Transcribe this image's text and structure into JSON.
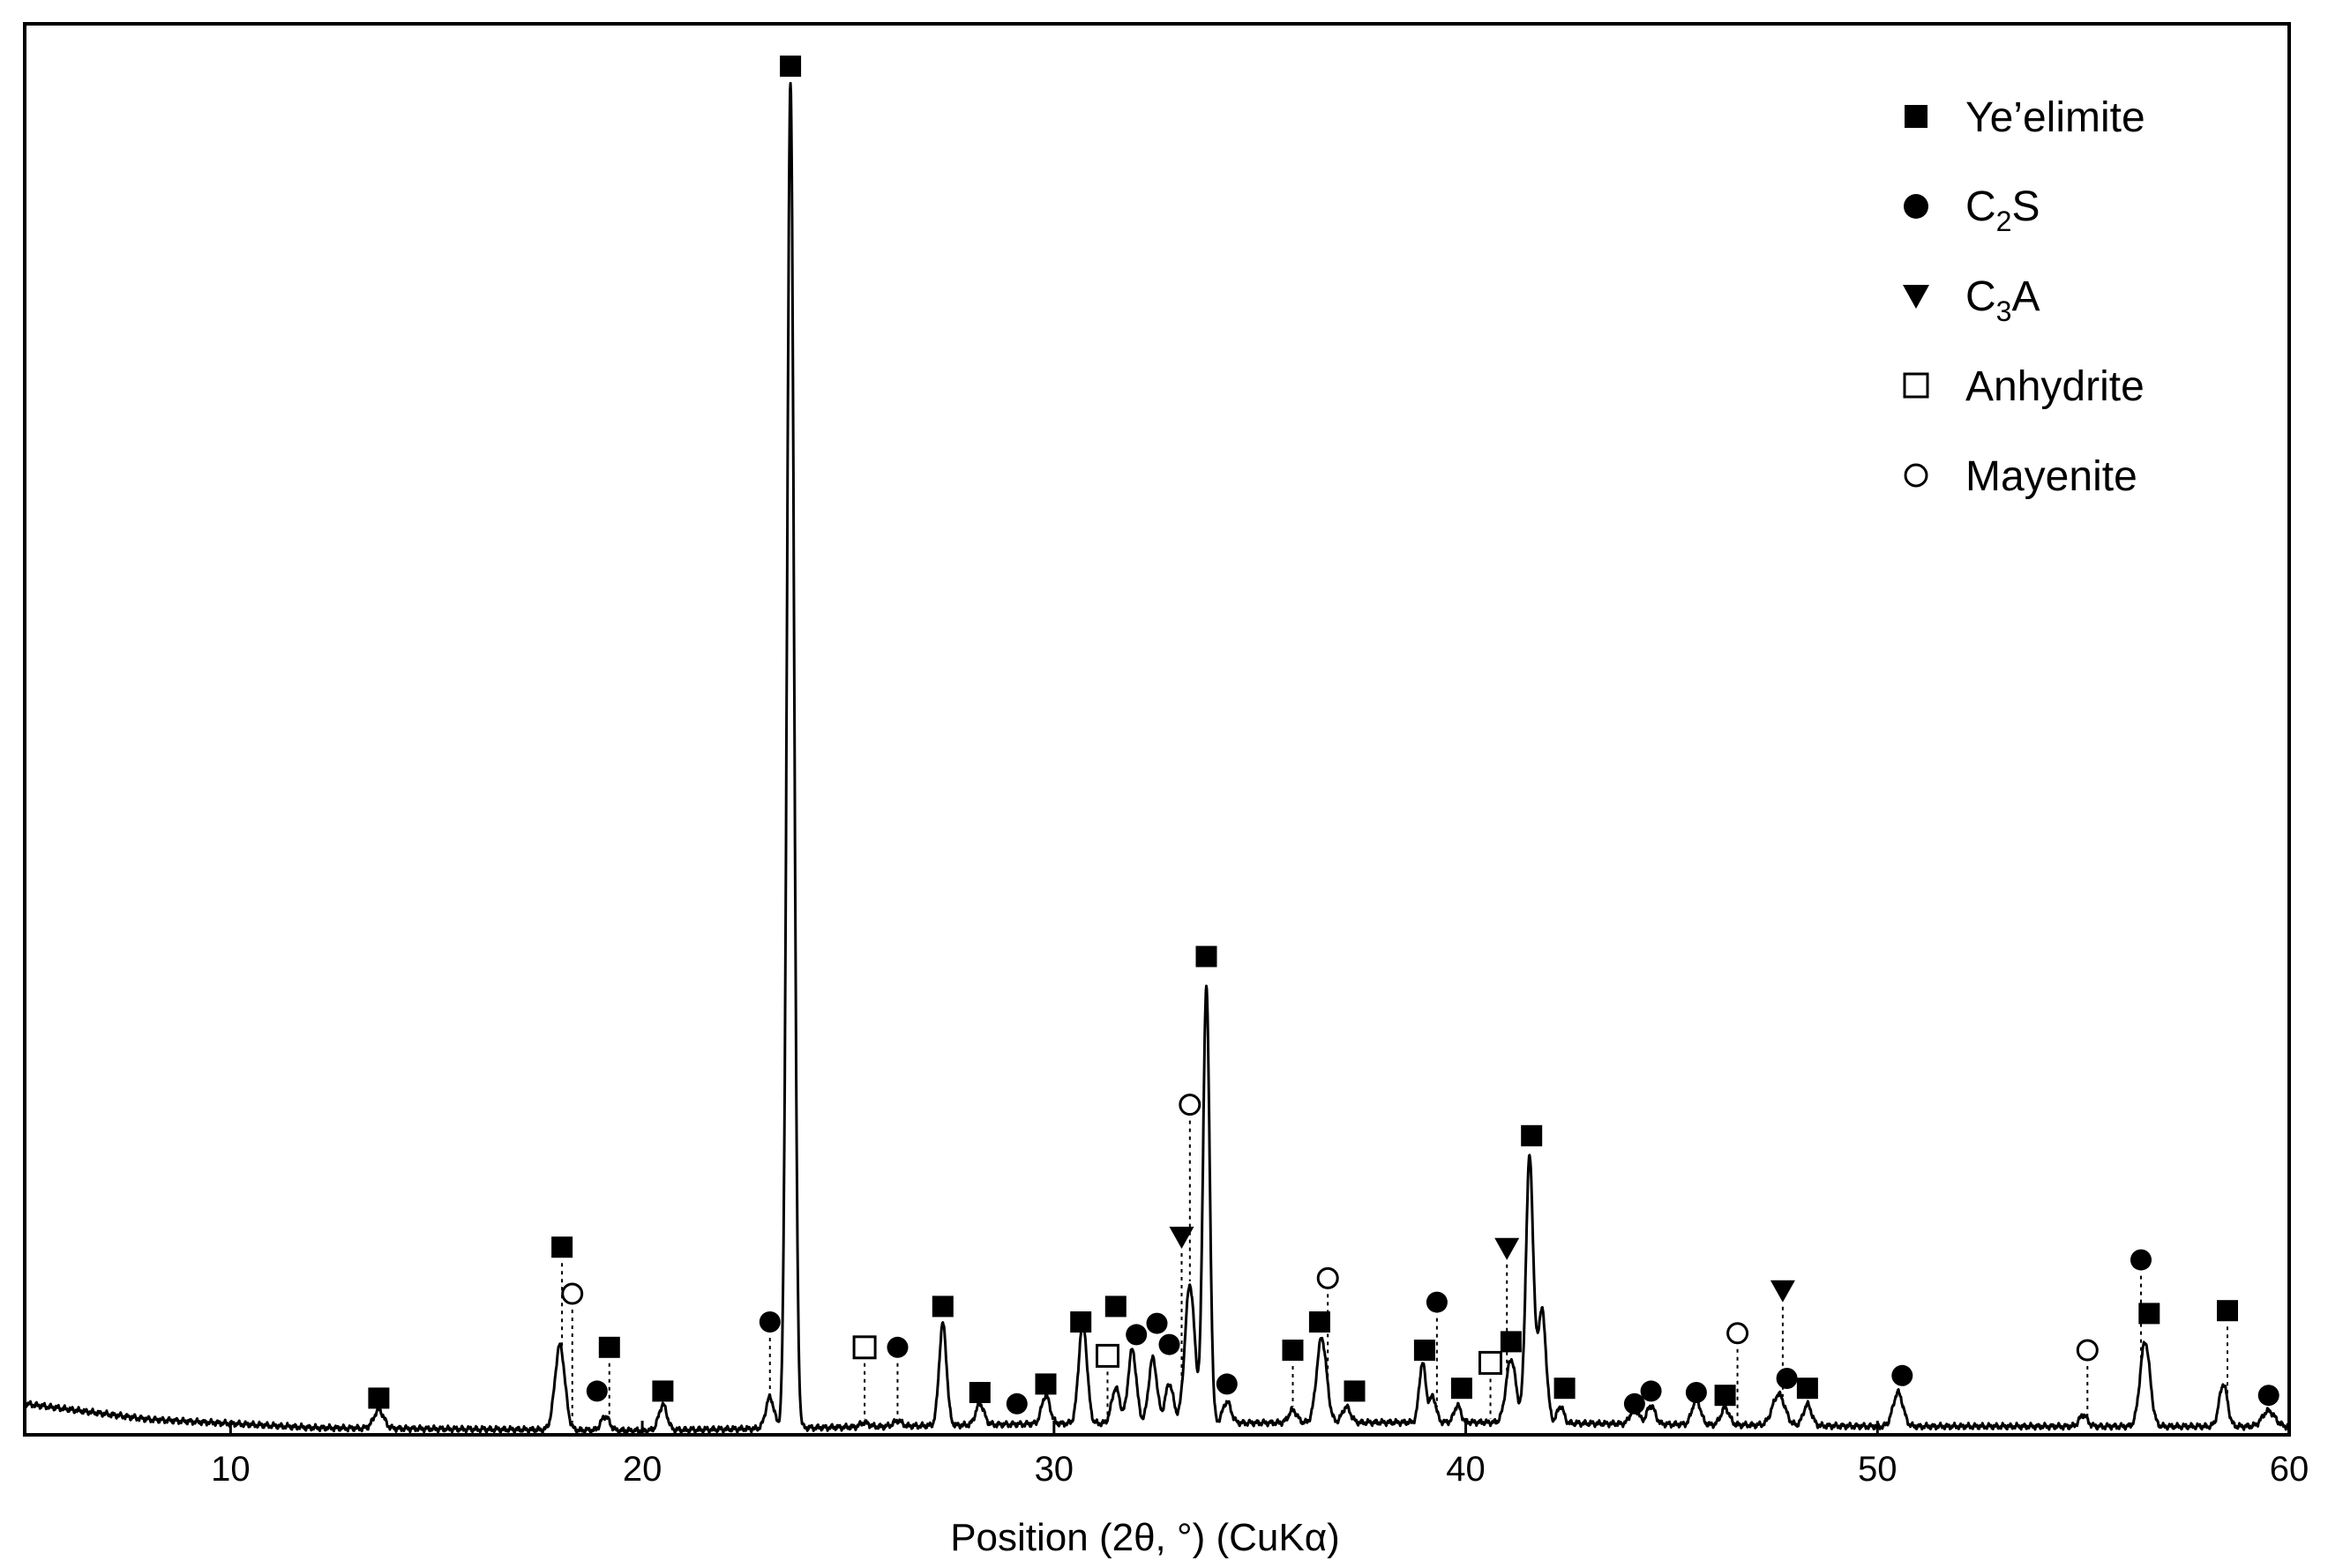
{
  "chart_data": {
    "type": "line",
    "title": "",
    "xlabel": "Position (2θ, °) (CuKα)",
    "ylabel": "",
    "xlim": [
      5,
      60
    ],
    "ylim": [
      0,
      100
    ],
    "x_ticks": [
      "10",
      "20",
      "30",
      "40",
      "50",
      "60"
    ],
    "x_tick_values": [
      10,
      20,
      30,
      40,
      50,
      60
    ],
    "y_ticks_shown": false,
    "grid": false,
    "legend_position": "top-right",
    "legend": [
      {
        "phase": "yeelimite",
        "marker": "filled-square",
        "label": "Ye’elimite"
      },
      {
        "phase": "c2s",
        "marker": "filled-circle",
        "label_main": "C",
        "label_sub": "2",
        "label_tail": "S"
      },
      {
        "phase": "c3a",
        "marker": "filled-triangle-down",
        "label_main": "C",
        "label_sub": "3",
        "label_tail": "A"
      },
      {
        "phase": "anhydrite",
        "marker": "open-square",
        "label": "Anhydrite"
      },
      {
        "phase": "mayenite",
        "marker": "open-circle",
        "label": "Mayenite"
      }
    ],
    "series": [
      {
        "color": "#000000",
        "baseline": [
          [
            5,
            2.2
          ],
          [
            8,
            1.1
          ],
          [
            12,
            0.5
          ],
          [
            20,
            0.3
          ],
          [
            30,
            0.8
          ],
          [
            40,
            0.9
          ],
          [
            50,
            0.6
          ],
          [
            60,
            0.6
          ]
        ],
        "peaks": [
          [
            13.6,
            1.3,
            0.12
          ],
          [
            18.0,
            6.0,
            0.12
          ],
          [
            19.1,
            1.0,
            0.1
          ],
          [
            20.5,
            1.8,
            0.1
          ],
          [
            23.1,
            2.2,
            0.1
          ],
          [
            23.6,
            95.3,
            0.085
          ],
          [
            25.4,
            0.3,
            0.1
          ],
          [
            26.2,
            0.4,
            0.1
          ],
          [
            27.3,
            7.2,
            0.09
          ],
          [
            28.2,
            1.5,
            0.1
          ],
          [
            29.8,
            2.0,
            0.1
          ],
          [
            30.7,
            7.2,
            0.1
          ],
          [
            31.5,
            2.5,
            0.1
          ],
          [
            31.9,
            5.2,
            0.1
          ],
          [
            32.4,
            4.6,
            0.1
          ],
          [
            32.8,
            2.8,
            0.1
          ],
          [
            33.3,
            9.8,
            0.12
          ],
          [
            33.7,
            30.9,
            0.08
          ],
          [
            34.2,
            1.5,
            0.1
          ],
          [
            35.8,
            0.9,
            0.1
          ],
          [
            36.5,
            6.0,
            0.12
          ],
          [
            37.1,
            1.1,
            0.1
          ],
          [
            38.95,
            4.2,
            0.08
          ],
          [
            39.2,
            1.8,
            0.08
          ],
          [
            39.8,
            1.2,
            0.08
          ],
          [
            41.1,
            4.5,
            0.12
          ],
          [
            41.55,
            18.8,
            0.09
          ],
          [
            41.85,
            8.0,
            0.1
          ],
          [
            42.3,
            1.2,
            0.08
          ],
          [
            44.1,
            1.1,
            0.1
          ],
          [
            44.5,
            1.3,
            0.1
          ],
          [
            45.6,
            1.8,
            0.1
          ],
          [
            46.3,
            1.2,
            0.1
          ],
          [
            47.6,
            2.2,
            0.15
          ],
          [
            48.3,
            1.5,
            0.1
          ],
          [
            50.5,
            2.4,
            0.12
          ],
          [
            55.0,
            0.8,
            0.1
          ],
          [
            56.5,
            6.0,
            0.12
          ],
          [
            58.4,
            3.0,
            0.1
          ],
          [
            59.5,
            1.1,
            0.15
          ]
        ]
      }
    ],
    "phase_markers": [
      {
        "phase": "yeelimite",
        "x": 13.6,
        "y": 2.6
      },
      {
        "phase": "yeelimite",
        "x": 18.05,
        "y": 13.3,
        "dotted": true
      },
      {
        "phase": "mayenite",
        "x": 18.3,
        "y": 10.0,
        "dotted": true
      },
      {
        "phase": "c2s",
        "x": 18.9,
        "y": 3.1
      },
      {
        "phase": "yeelimite",
        "x": 19.2,
        "y": 6.2,
        "dotted": true
      },
      {
        "phase": "yeelimite",
        "x": 20.5,
        "y": 3.1
      },
      {
        "phase": "c2s",
        "x": 23.1,
        "y": 8.0,
        "dotted": true
      },
      {
        "phase": "yeelimite",
        "x": 23.6,
        "y": 97.0
      },
      {
        "phase": "anhydrite",
        "x": 25.4,
        "y": 6.2,
        "dotted": true
      },
      {
        "phase": "c2s",
        "x": 26.2,
        "y": 6.2,
        "dotted": true
      },
      {
        "phase": "yeelimite",
        "x": 27.3,
        "y": 9.1
      },
      {
        "phase": "yeelimite",
        "x": 28.2,
        "y": 3.0
      },
      {
        "phase": "c2s",
        "x": 29.1,
        "y": 2.2
      },
      {
        "phase": "yeelimite",
        "x": 29.8,
        "y": 3.6
      },
      {
        "phase": "yeelimite",
        "x": 30.65,
        "y": 8.0
      },
      {
        "phase": "anhydrite",
        "x": 31.3,
        "y": 5.6,
        "dotted": true
      },
      {
        "phase": "yeelimite",
        "x": 31.5,
        "y": 9.1
      },
      {
        "phase": "c2s",
        "x": 32.0,
        "y": 7.1
      },
      {
        "phase": "c2s",
        "x": 32.5,
        "y": 7.9
      },
      {
        "phase": "c2s",
        "x": 32.8,
        "y": 6.4
      },
      {
        "phase": "c3a",
        "x": 33.1,
        "y": 14.0,
        "dotted": true
      },
      {
        "phase": "mayenite",
        "x": 33.3,
        "y": 23.4,
        "dotted": true
      },
      {
        "phase": "yeelimite",
        "x": 33.7,
        "y": 33.9
      },
      {
        "phase": "c2s",
        "x": 34.2,
        "y": 3.6
      },
      {
        "phase": "yeelimite",
        "x": 35.8,
        "y": 6.0,
        "dotted": true
      },
      {
        "phase": "yeelimite",
        "x": 36.45,
        "y": 8.0
      },
      {
        "phase": "mayenite",
        "x": 36.65,
        "y": 11.1,
        "dotted": true
      },
      {
        "phase": "yeelimite",
        "x": 37.3,
        "y": 3.1
      },
      {
        "phase": "yeelimite",
        "x": 39.0,
        "y": 6.0
      },
      {
        "phase": "c2s",
        "x": 39.3,
        "y": 9.4,
        "dotted": true
      },
      {
        "phase": "yeelimite",
        "x": 39.9,
        "y": 3.3
      },
      {
        "phase": "anhydrite",
        "x": 40.6,
        "y": 5.1,
        "dotted": true
      },
      {
        "phase": "c3a",
        "x": 41.0,
        "y": 13.2,
        "dotted": true
      },
      {
        "phase": "yeelimite",
        "x": 41.1,
        "y": 6.6
      },
      {
        "phase": "yeelimite",
        "x": 41.6,
        "y": 21.2
      },
      {
        "phase": "yeelimite",
        "x": 42.4,
        "y": 3.3
      },
      {
        "phase": "c2s",
        "x": 44.1,
        "y": 2.2
      },
      {
        "phase": "c2s",
        "x": 44.5,
        "y": 3.1
      },
      {
        "phase": "c2s",
        "x": 45.6,
        "y": 3.0
      },
      {
        "phase": "yeelimite",
        "x": 46.3,
        "y": 2.8
      },
      {
        "phase": "mayenite",
        "x": 46.6,
        "y": 7.2,
        "dotted": true
      },
      {
        "phase": "c3a",
        "x": 47.7,
        "y": 10.2,
        "dotted": true
      },
      {
        "phase": "c2s",
        "x": 47.8,
        "y": 4.0
      },
      {
        "phase": "yeelimite",
        "x": 48.3,
        "y": 3.3
      },
      {
        "phase": "c2s",
        "x": 50.6,
        "y": 4.2
      },
      {
        "phase": "mayenite",
        "x": 55.1,
        "y": 6.0,
        "dotted": true
      },
      {
        "phase": "c2s",
        "x": 56.4,
        "y": 12.4,
        "dotted": true
      },
      {
        "phase": "yeelimite",
        "x": 56.6,
        "y": 8.6
      },
      {
        "phase": "yeelimite",
        "x": 58.5,
        "y": 8.8,
        "dotted": true
      },
      {
        "phase": "c2s",
        "x": 59.5,
        "y": 2.8
      }
    ]
  }
}
